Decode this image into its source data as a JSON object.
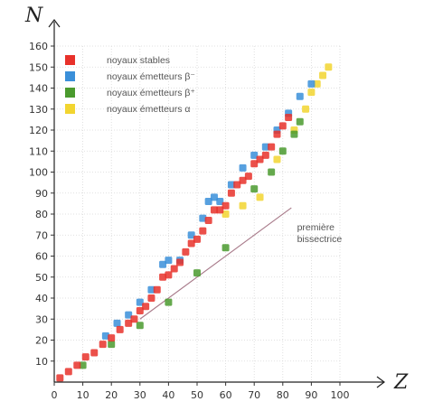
{
  "chart_data": {
    "type": "scatter",
    "title": "",
    "xlabel": "Z",
    "ylabel": "N",
    "xlim": [
      0,
      100
    ],
    "ylim": [
      0,
      160
    ],
    "x_ticks": [
      "0",
      "10",
      "20",
      "30",
      "40",
      "50",
      "60",
      "70",
      "80",
      "90",
      "100"
    ],
    "y_ticks": [
      "10",
      "20",
      "30",
      "40",
      "50",
      "60",
      "70",
      "80",
      "90",
      "100",
      "110",
      "120",
      "130",
      "140",
      "150",
      "160"
    ],
    "grid": "dotted",
    "reference_line": {
      "x": [
        30,
        83
      ],
      "y": [
        30,
        83
      ]
    },
    "annotation": {
      "lines": [
        "première",
        "bissectrice"
      ],
      "x": 85,
      "y": 74
    },
    "legend_position": "top-left",
    "series": [
      {
        "name": "noyaux stables",
        "color": "#e8312a",
        "points": [
          [
            2,
            2
          ],
          [
            5,
            5
          ],
          [
            8,
            8
          ],
          [
            11,
            12
          ],
          [
            14,
            14
          ],
          [
            17,
            18
          ],
          [
            20,
            21
          ],
          [
            23,
            25
          ],
          [
            26,
            28
          ],
          [
            28,
            30
          ],
          [
            30,
            34
          ],
          [
            32,
            36
          ],
          [
            34,
            40
          ],
          [
            36,
            44
          ],
          [
            38,
            50
          ],
          [
            40,
            51
          ],
          [
            42,
            54
          ],
          [
            44,
            57
          ],
          [
            46,
            62
          ],
          [
            48,
            66
          ],
          [
            50,
            68
          ],
          [
            52,
            72
          ],
          [
            54,
            77
          ],
          [
            56,
            82
          ],
          [
            58,
            82
          ],
          [
            60,
            84
          ],
          [
            62,
            90
          ],
          [
            64,
            94
          ],
          [
            66,
            96
          ],
          [
            68,
            98
          ],
          [
            70,
            104
          ],
          [
            72,
            106
          ],
          [
            74,
            108
          ],
          [
            76,
            112
          ],
          [
            78,
            118
          ],
          [
            80,
            122
          ],
          [
            82,
            126
          ]
        ]
      },
      {
        "name": "noyaux émetteurs β⁻",
        "color": "#3a8fd9",
        "points": [
          [
            18,
            22
          ],
          [
            22,
            28
          ],
          [
            26,
            32
          ],
          [
            30,
            38
          ],
          [
            34,
            44
          ],
          [
            38,
            56
          ],
          [
            40,
            58
          ],
          [
            44,
            58
          ],
          [
            48,
            70
          ],
          [
            52,
            78
          ],
          [
            54,
            86
          ],
          [
            56,
            88
          ],
          [
            58,
            86
          ],
          [
            62,
            94
          ],
          [
            66,
            102
          ],
          [
            70,
            108
          ],
          [
            74,
            112
          ],
          [
            78,
            120
          ],
          [
            82,
            128
          ],
          [
            86,
            136
          ],
          [
            90,
            142
          ]
        ]
      },
      {
        "name": "noyaux émetteurs β⁺",
        "color": "#4a9a2e",
        "points": [
          [
            10,
            8
          ],
          [
            20,
            18
          ],
          [
            30,
            27
          ],
          [
            40,
            38
          ],
          [
            50,
            52
          ],
          [
            60,
            64
          ],
          [
            70,
            92
          ],
          [
            76,
            100
          ],
          [
            80,
            110
          ],
          [
            84,
            118
          ],
          [
            86,
            124
          ]
        ]
      },
      {
        "name": "noyaux émetteurs α",
        "color": "#f2d530",
        "points": [
          [
            60,
            80
          ],
          [
            66,
            84
          ],
          [
            72,
            88
          ],
          [
            78,
            106
          ],
          [
            84,
            120
          ],
          [
            88,
            130
          ],
          [
            90,
            138
          ],
          [
            92,
            142
          ],
          [
            94,
            146
          ],
          [
            96,
            150
          ]
        ]
      }
    ]
  }
}
